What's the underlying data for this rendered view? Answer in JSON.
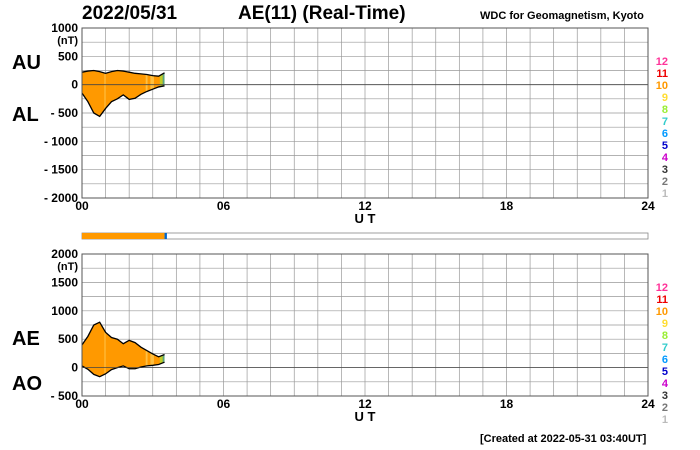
{
  "header": {
    "date": "2022/05/31",
    "title": "AE(11) (Real-Time)",
    "credit": "WDC for Geomagnetism, Kyoto"
  },
  "footer": {
    "created": "[Created at 2022-05-31 03:40UT]"
  },
  "panels": {
    "upper": {
      "label_top": "AU",
      "label_bottom": "AL"
    },
    "lower": {
      "label_top": "AE",
      "label_bottom": "AO"
    }
  },
  "colors": {
    "fill_main": "#ff9900",
    "fill_highlight": "#ffcc55",
    "fill_latest": "#aadd33",
    "fill_end": "#22aaaa",
    "grid": "#999999",
    "frame": "#555555"
  },
  "chart_data": [
    {
      "type": "area",
      "title": "AU / AL",
      "x_unit": "hours UT",
      "xlim": [
        0,
        24
      ],
      "xticks": [
        "00",
        "06",
        "12",
        "18",
        "24"
      ],
      "xlabel": "U T",
      "ylim": [
        -2000,
        1000
      ],
      "yticks": [
        "1000",
        "500",
        "0",
        "- 500",
        "- 1000",
        "- 1500",
        "- 2000"
      ],
      "ylabel": "(nT)",
      "grid": true,
      "x": [
        0,
        0.25,
        0.5,
        0.75,
        1.0,
        1.25,
        1.5,
        1.75,
        2.0,
        2.25,
        2.5,
        2.75,
        3.0,
        3.25,
        3.5
      ],
      "series": [
        {
          "name": "AU",
          "values": [
            220,
            240,
            250,
            230,
            200,
            230,
            250,
            240,
            220,
            200,
            190,
            180,
            160,
            150,
            210
          ]
        },
        {
          "name": "AL",
          "values": [
            -150,
            -300,
            -500,
            -560,
            -420,
            -300,
            -250,
            -180,
            -260,
            -240,
            -170,
            -120,
            -80,
            -40,
            -20
          ]
        }
      ],
      "legend": [
        "12",
        "11",
        "10",
        "9",
        "8",
        "7",
        "6",
        "5",
        "4",
        "3",
        "2",
        "1"
      ],
      "legend_colors": [
        "#ff3399",
        "#ee0000",
        "#ff9900",
        "#ffdd33",
        "#99ee33",
        "#33cccc",
        "#0099ff",
        "#0000cc",
        "#cc00cc",
        "#333333",
        "#777777",
        "#bbbbbb"
      ],
      "legend_position": "right"
    },
    {
      "type": "area",
      "title": "AE / AO",
      "x_unit": "hours UT",
      "xlim": [
        0,
        24
      ],
      "xticks": [
        "00",
        "06",
        "12",
        "18",
        "24"
      ],
      "xlabel": "U T",
      "ylim": [
        -500,
        2000
      ],
      "yticks": [
        "2000",
        "1500",
        "1000",
        "500",
        "0",
        "- 500"
      ],
      "ylabel": "(nT)",
      "grid": true,
      "x": [
        0,
        0.25,
        0.5,
        0.75,
        1.0,
        1.25,
        1.5,
        1.75,
        2.0,
        2.25,
        2.5,
        2.75,
        3.0,
        3.25,
        3.5
      ],
      "series": [
        {
          "name": "AE",
          "values": [
            400,
            550,
            750,
            800,
            620,
            530,
            500,
            420,
            480,
            440,
            360,
            300,
            240,
            190,
            230
          ]
        },
        {
          "name": "AO",
          "values": [
            30,
            -30,
            -120,
            -160,
            -110,
            -35,
            0,
            30,
            -20,
            -20,
            10,
            30,
            40,
            55,
            95
          ]
        }
      ],
      "legend": [
        "12",
        "11",
        "10",
        "9",
        "8",
        "7",
        "6",
        "5",
        "4",
        "3",
        "2",
        "1"
      ],
      "legend_colors": [
        "#ff3399",
        "#ee0000",
        "#ff9900",
        "#ffdd33",
        "#99ee33",
        "#33cccc",
        "#0099ff",
        "#0000cc",
        "#cc00cc",
        "#333333",
        "#777777",
        "#bbbbbb"
      ],
      "legend_position": "right"
    }
  ],
  "station_bar": {
    "end_hour": 3.6
  }
}
